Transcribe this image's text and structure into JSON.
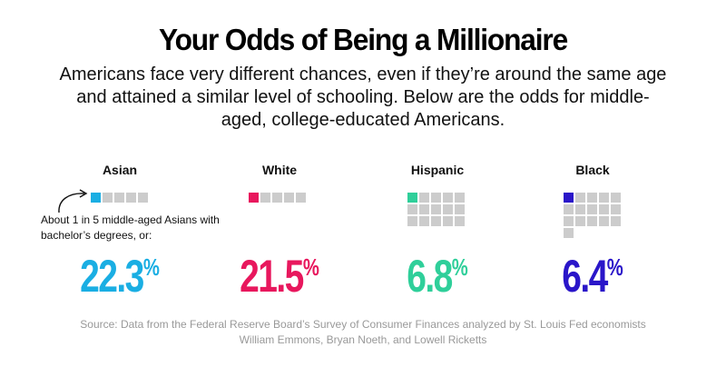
{
  "title": "Your Odds of Being a Millionaire",
  "subtitle": "Americans face very different chances, even if they’re around the same age and attained a similar level of schooling. Below are the odds for middle-aged, college-educated Americans.",
  "annotation": "About 1 in 5 middle-aged Asians with bachelor’s degrees, or:",
  "source": "Source: Data from the Federal Reserve Board’s Survey of Consumer Finances analyzed by St. Louis Fed economists William Emmons, Bryan Noeth, and Lowell Ricketts",
  "colors": {
    "grey_square": "#cccccc"
  },
  "chart_data": {
    "type": "table",
    "unit": "%",
    "groups": [
      {
        "label": "Asian",
        "value": 22.3,
        "display": "22.3",
        "odds_one_in": 5,
        "color": "#1aaee3"
      },
      {
        "label": "White",
        "value": 21.5,
        "display": "21.5",
        "odds_one_in": 5,
        "color": "#e8175d"
      },
      {
        "label": "Hispanic",
        "value": 6.8,
        "display": "6.8",
        "odds_one_in": 15,
        "color": "#2fcf9a"
      },
      {
        "label": "Black",
        "value": 6.4,
        "display": "6.4",
        "odds_one_in": 16,
        "color": "#2a16c9"
      }
    ]
  }
}
